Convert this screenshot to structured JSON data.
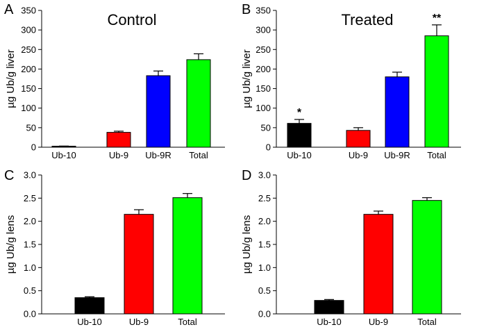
{
  "colors": {
    "Ub-10": "#000000",
    "Ub-9": "#ff0000",
    "Ub-9R": "#0000ff",
    "Total": "#00ff00"
  },
  "chart_data": [
    {
      "type": "bar",
      "panel": "A",
      "title": "Control",
      "xlabel": "",
      "ylabel": "µg Ub/g liver",
      "ylim": [
        0,
        350
      ],
      "yticks": [
        0,
        50,
        100,
        150,
        200,
        250,
        300,
        350
      ],
      "categories": [
        "Ub-10",
        "Ub-9",
        "Ub-9R",
        "Total"
      ],
      "values": [
        2,
        38,
        183,
        224
      ],
      "errors": [
        1,
        3,
        12,
        15
      ],
      "annotations": [
        "",
        "",
        "",
        ""
      ]
    },
    {
      "type": "bar",
      "panel": "B",
      "title": "Treated",
      "xlabel": "",
      "ylabel": "µg Ub/g liver",
      "ylim": [
        0,
        350
      ],
      "yticks": [
        0,
        50,
        100,
        150,
        200,
        250,
        300,
        350
      ],
      "categories": [
        "Ub-10",
        "Ub-9",
        "Ub-9R",
        "Total"
      ],
      "values": [
        61,
        43,
        180,
        285
      ],
      "errors": [
        10,
        7,
        12,
        28
      ],
      "annotations": [
        "*",
        "",
        "",
        "**"
      ]
    },
    {
      "type": "bar",
      "panel": "C",
      "title": "",
      "xlabel": "",
      "ylabel": "µg Ub/g lens",
      "ylim": [
        0,
        3.0
      ],
      "yticks": [
        "0.0",
        "0.5",
        "1.0",
        "1.5",
        "2.0",
        "2.5",
        "3.0"
      ],
      "categories": [
        "Ub-10",
        "Ub-9",
        "Total"
      ],
      "values": [
        0.35,
        2.15,
        2.51
      ],
      "errors": [
        0.02,
        0.1,
        0.09
      ],
      "annotations": [
        "",
        "",
        ""
      ]
    },
    {
      "type": "bar",
      "panel": "D",
      "title": "",
      "xlabel": "",
      "ylabel": "µg Ub/g lens",
      "ylim": [
        0,
        3.0
      ],
      "yticks": [
        "0.0",
        "0.5",
        "1.0",
        "1.5",
        "2.0",
        "2.5",
        "3.0"
      ],
      "categories": [
        "Ub-10",
        "Ub-9",
        "Total"
      ],
      "values": [
        0.29,
        2.15,
        2.45
      ],
      "errors": [
        0.02,
        0.07,
        0.06
      ],
      "annotations": [
        "",
        "",
        ""
      ]
    }
  ]
}
